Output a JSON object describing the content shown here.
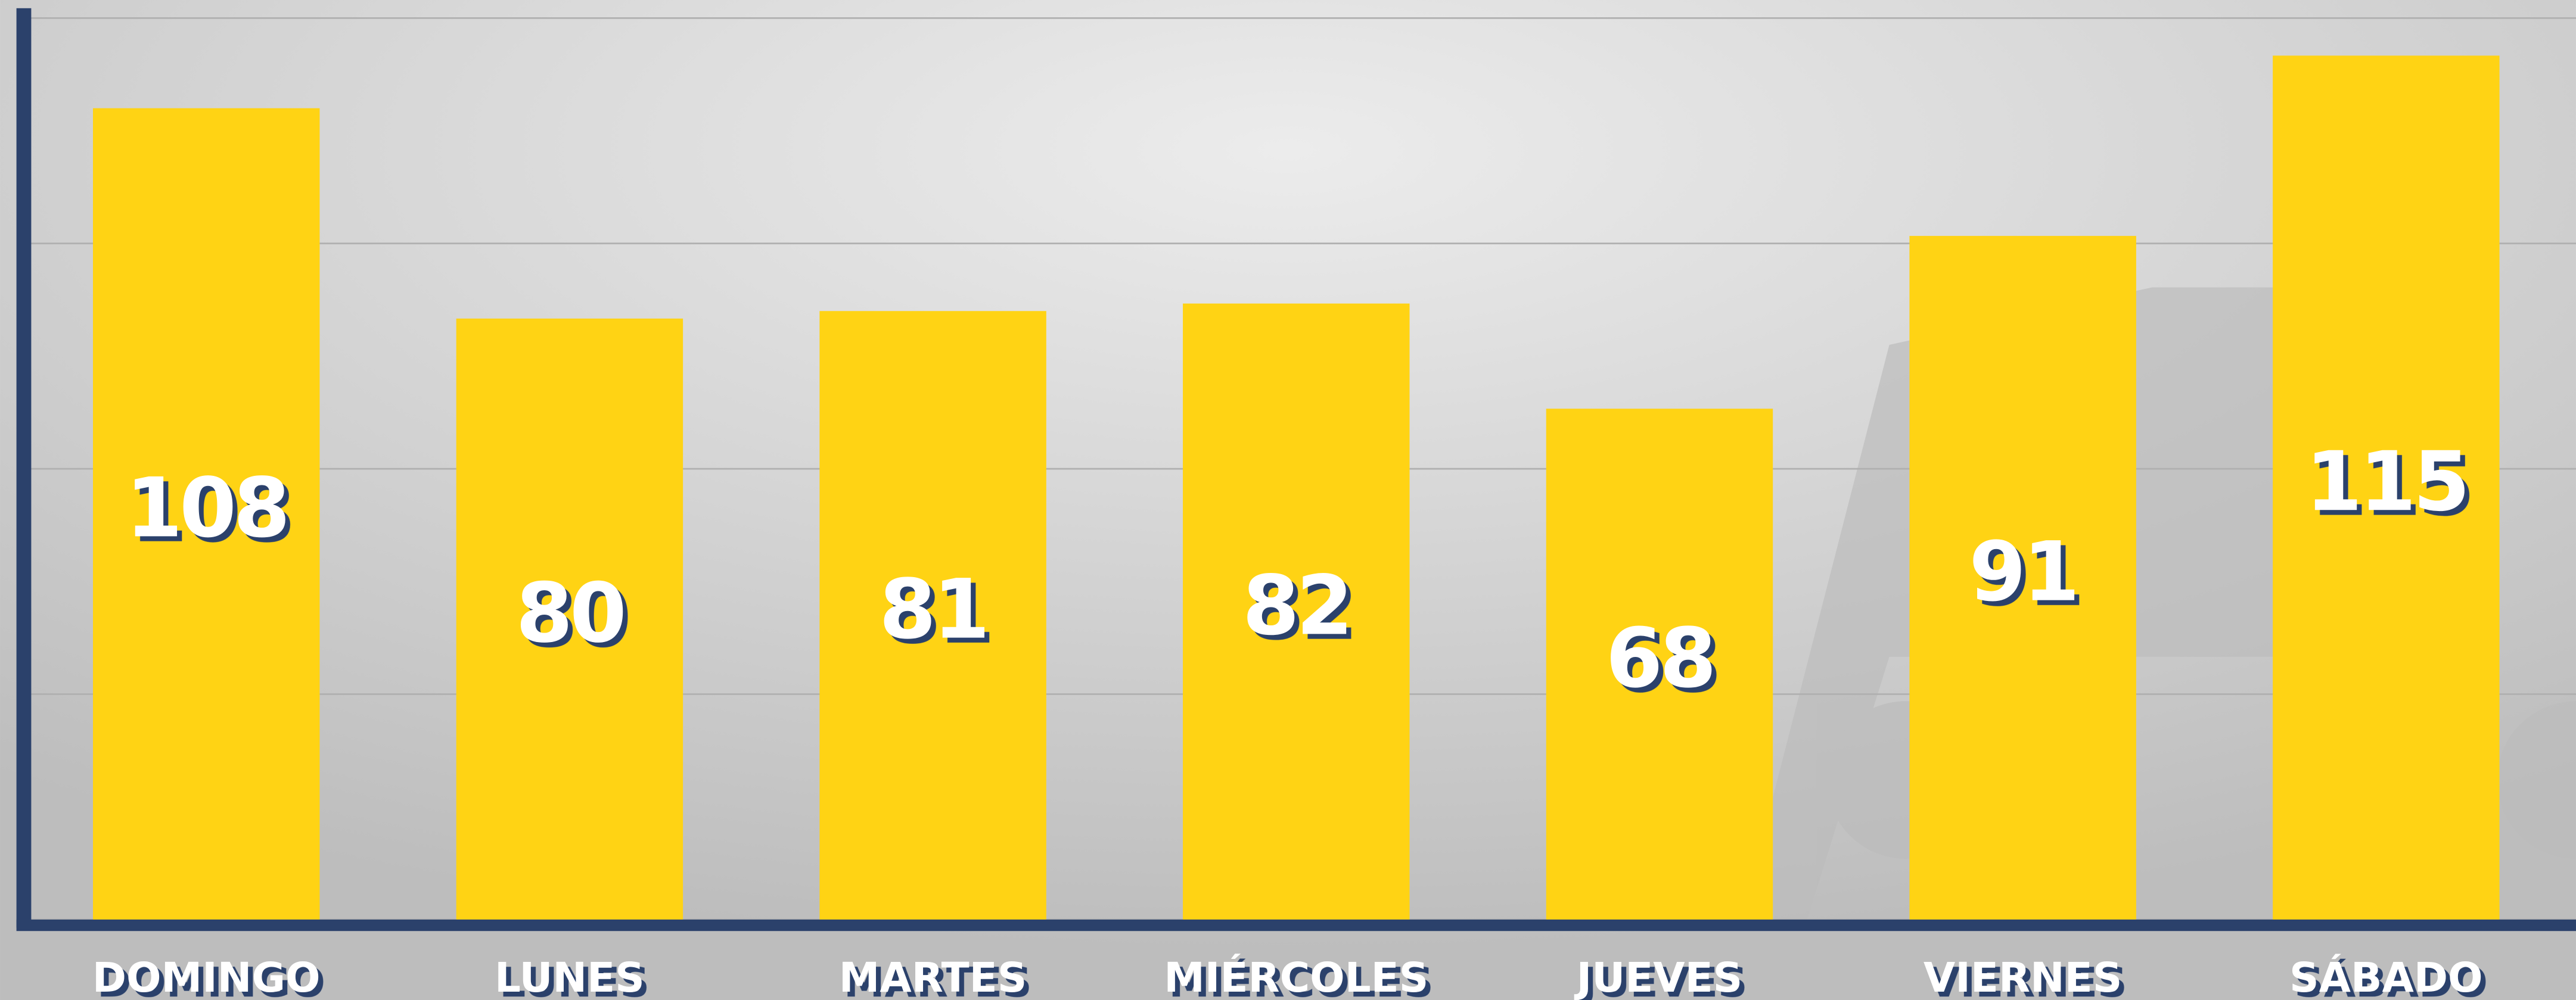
{
  "chart_data": {
    "type": "bar",
    "categories": [
      "DOMINGO",
      "LUNES",
      "MARTES",
      "MIÉRCOLES",
      "JUEVES",
      "VIERNES",
      "SÁBADO"
    ],
    "values": [
      108,
      80,
      81,
      82,
      68,
      91,
      115
    ],
    "color": "#ffd314",
    "ylim": [
      0,
      120
    ],
    "yticks": [
      0,
      30,
      60,
      90,
      120
    ],
    "grid": true
  }
}
